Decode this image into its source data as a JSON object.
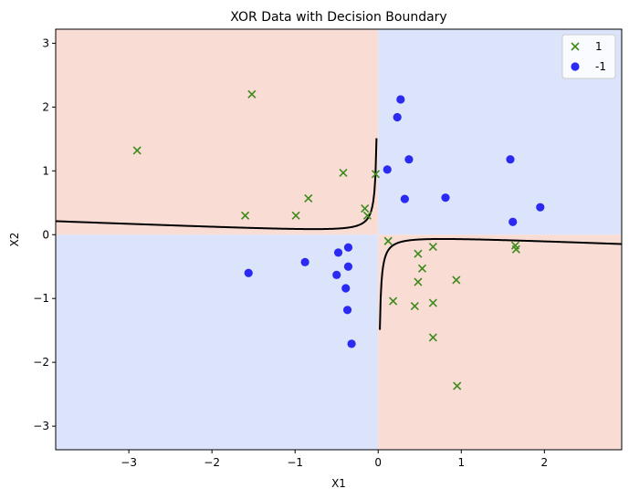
{
  "chart_data": {
    "type": "scatter",
    "title": "XOR Data with Decision Boundary",
    "xlabel": "X1",
    "ylabel": "X2",
    "xlim": [
      -3.88,
      2.93
    ],
    "ylim": [
      -3.37,
      3.22
    ],
    "xticks": [
      -3,
      -2,
      -1,
      0,
      1,
      2
    ],
    "yticks": [
      -3,
      -2,
      -1,
      0,
      1,
      2,
      3
    ],
    "grid": false,
    "legend_position": "top-right",
    "region_colors": {
      "positive": "#f9dcd3",
      "negative": "#dce4fb"
    },
    "boundary_color": "#000000",
    "series": [
      {
        "name": "1",
        "marker": "x",
        "color": "#3d8a1c",
        "points": [
          [
            -2.9,
            1.32
          ],
          [
            -1.52,
            2.2
          ],
          [
            -0.42,
            0.97
          ],
          [
            -0.03,
            0.95
          ],
          [
            -0.84,
            0.57
          ],
          [
            -1.6,
            0.3
          ],
          [
            -0.99,
            0.3
          ],
          [
            -0.16,
            0.41
          ],
          [
            -0.13,
            0.3
          ],
          [
            0.12,
            -0.1
          ],
          [
            0.66,
            -0.19
          ],
          [
            0.48,
            -0.3
          ],
          [
            0.53,
            -0.53
          ],
          [
            0.48,
            -0.74
          ],
          [
            0.94,
            -0.71
          ],
          [
            0.18,
            -1.04
          ],
          [
            0.44,
            -1.12
          ],
          [
            0.66,
            -1.07
          ],
          [
            0.66,
            -1.61
          ],
          [
            0.95,
            -2.37
          ],
          [
            1.65,
            -0.17
          ],
          [
            1.66,
            -0.23
          ]
        ]
      },
      {
        "name": "-1",
        "marker": "o",
        "color": "#2a2af2",
        "points": [
          [
            0.27,
            2.12
          ],
          [
            0.23,
            1.84
          ],
          [
            0.37,
            1.18
          ],
          [
            0.11,
            1.02
          ],
          [
            0.32,
            0.56
          ],
          [
            0.81,
            0.58
          ],
          [
            1.59,
            1.18
          ],
          [
            1.95,
            0.43
          ],
          [
            1.62,
            0.2
          ],
          [
            -0.48,
            -0.28
          ],
          [
            -0.36,
            -0.2
          ],
          [
            -0.36,
            -0.5
          ],
          [
            -0.5,
            -0.63
          ],
          [
            -0.39,
            -0.84
          ],
          [
            -0.37,
            -1.18
          ],
          [
            -0.32,
            -1.71
          ],
          [
            -0.88,
            -0.43
          ],
          [
            -1.56,
            -0.6
          ]
        ]
      }
    ]
  }
}
